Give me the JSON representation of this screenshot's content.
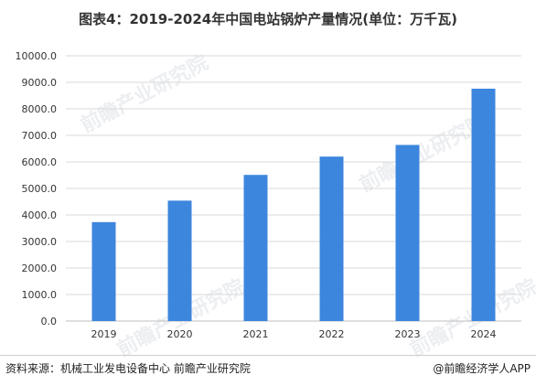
{
  "title": "图表4：2019-2024年中国电站锅炉产量情况(单位：万千瓦)",
  "footer": {
    "source": "资料来源：机械工业发电设备中心 前瞻产业研究院",
    "brand": "@前瞻经济学人APP"
  },
  "watermark": "前瞻产业研究院",
  "colors": {
    "bar": "#3c86de",
    "grid": "#d9d9d9",
    "axis_text": "#333333"
  },
  "chart_data": {
    "type": "bar",
    "categories": [
      "2019",
      "2020",
      "2021",
      "2022",
      "2023",
      "2024"
    ],
    "values": [
      3730,
      4540,
      5510,
      6200,
      6640,
      8760
    ],
    "ylim": [
      0,
      10000
    ],
    "yticks": [
      "0.0",
      "1000.0",
      "2000.0",
      "3000.0",
      "4000.0",
      "5000.0",
      "6000.0",
      "7000.0",
      "8000.0",
      "9000.0",
      "10000.0"
    ],
    "grid": true,
    "legend": "none"
  }
}
